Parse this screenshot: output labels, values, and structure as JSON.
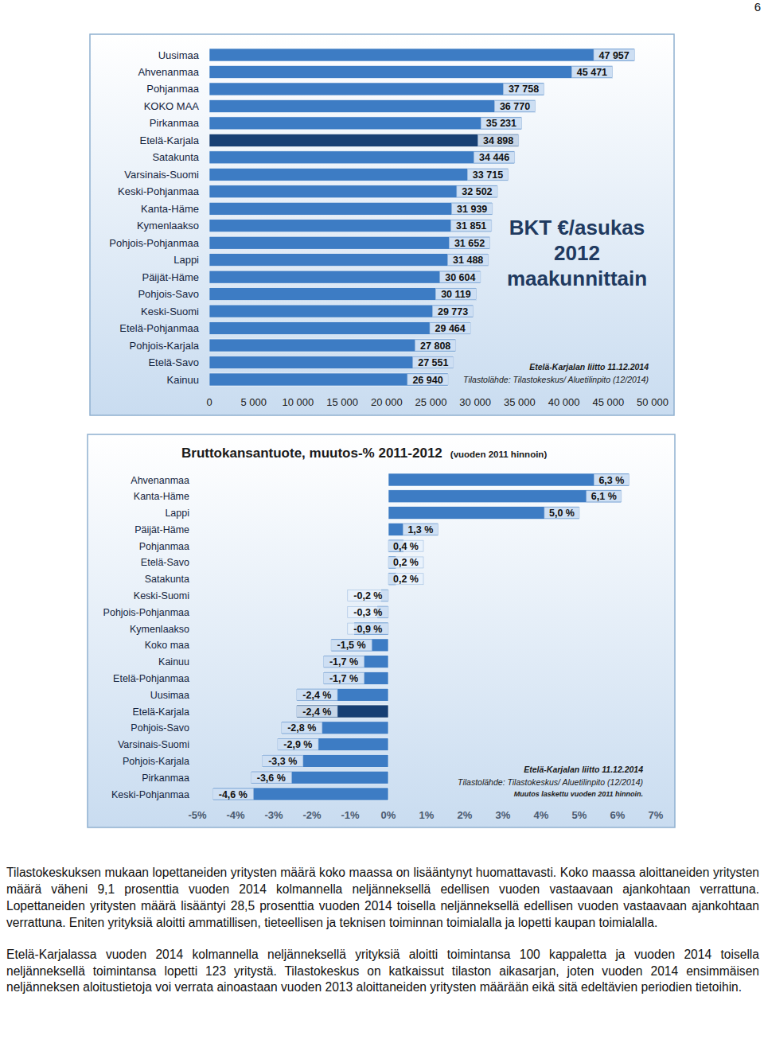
{
  "page_number": "6",
  "chart_data": [
    {
      "type": "bar",
      "orientation": "horizontal",
      "title": "BKT €/asukas 2012 maakunnittain",
      "annotations": [
        "Etelä-Karjalan liitto 11.12.2014",
        "Tilastolähde: Tilastokeskus/ Aluetilinpito (12/2014)"
      ],
      "categories": [
        "Uusimaa",
        "Ahvenanmaa",
        "Pohjanmaa",
        "KOKO MAA",
        "Pirkanmaa",
        "Etelä-Karjala",
        "Satakunta",
        "Varsinais-Suomi",
        "Keski-Pohjanmaa",
        "Kanta-Häme",
        "Kymenlaakso",
        "Pohjois-Pohjanmaa",
        "Lappi",
        "Päijät-Häme",
        "Pohjois-Savo",
        "Keski-Suomi",
        "Etelä-Pohjanmaa",
        "Pohjois-Karjala",
        "Etelä-Savo",
        "Kainuu"
      ],
      "values": [
        47957,
        45471,
        37758,
        36770,
        35231,
        34898,
        34446,
        33715,
        32502,
        31939,
        31851,
        31652,
        31488,
        30604,
        30119,
        29773,
        29464,
        27808,
        27551,
        26940
      ],
      "value_labels": [
        "47 957",
        "45 471",
        "37 758",
        "36 770",
        "35 231",
        "34 898",
        "34 446",
        "33 715",
        "32 502",
        "31 939",
        "31 851",
        "31 652",
        "31 488",
        "30 604",
        "30 119",
        "29 773",
        "29 464",
        "27 808",
        "27 551",
        "26 940"
      ],
      "colors": [
        "#3d7cc4",
        "#3d7cc4",
        "#3d7cc4",
        "#3d7cc4",
        "#3d7cc4",
        "#173f73",
        "#3d7cc4",
        "#3d7cc4",
        "#3d7cc4",
        "#3d7cc4",
        "#3d7cc4",
        "#3d7cc4",
        "#3d7cc4",
        "#3d7cc4",
        "#3d7cc4",
        "#3d7cc4",
        "#3d7cc4",
        "#3d7cc4",
        "#3d7cc4",
        "#3d7cc4"
      ],
      "data_labels": true,
      "grid": false,
      "xlim": [
        0,
        50000
      ],
      "xticks": [
        0,
        {
          "value": 5000,
          "label": "5 000"
        },
        {
          "value": 10000,
          "label": "10 000"
        },
        {
          "value": 15000,
          "label": "15 000"
        },
        {
          "value": 20000,
          "label": "20 000"
        },
        {
          "value": 25000,
          "label": "25 000"
        },
        {
          "value": 30000,
          "label": "30 000"
        },
        {
          "value": 35000,
          "label": "35 000"
        },
        {
          "value": 40000,
          "label": "40 000"
        },
        {
          "value": 45000,
          "label": "45 000"
        },
        {
          "value": 50000,
          "label": "50 000"
        }
      ]
    },
    {
      "type": "bar",
      "orientation": "horizontal",
      "title": "Bruttokansantuote, muutos-% 2011-2012",
      "subtitle": "(vuoden 2011 hinnoin)",
      "annotations": [
        "Etelä-Karjalan liitto 11.12.2014",
        "Tilastolähde: Tilastokeskus/ Aluetilinpito (12/2014)",
        "Muutos laskettu vuoden 2011 hinnoin."
      ],
      "categories": [
        "Ahvenanmaa",
        "Kanta-Häme",
        "Lappi",
        "Päijät-Häme",
        "Pohjanmaa",
        "Etelä-Savo",
        "Satakunta",
        "Keski-Suomi",
        "Pohjois-Pohjanmaa",
        "Kymenlaakso",
        "Koko maa",
        "Kainuu",
        "Etelä-Pohjanmaa",
        "Uusimaa",
        "Etelä-Karjala",
        "Pohjois-Savo",
        "Varsinais-Suomi",
        "Pohjois-Karjala",
        "Pirkanmaa",
        "Keski-Pohjanmaa"
      ],
      "values": [
        6.3,
        6.1,
        5.0,
        1.3,
        0.4,
        0.2,
        0.2,
        -0.2,
        -0.3,
        -0.9,
        -1.5,
        -1.7,
        -1.7,
        -2.4,
        -2.4,
        -2.8,
        -2.9,
        -3.3,
        -3.6,
        -4.6
      ],
      "value_labels": [
        "6,3 %",
        "6,1 %",
        "5,0 %",
        "1,3 %",
        "0,4 %",
        "0,2 %",
        "0,2 %",
        "-0,2 %",
        "-0,3 %",
        "-0,9 %",
        "-1,5 %",
        "-1,7 %",
        "-1,7 %",
        "-2,4 %",
        "-2,4 %",
        "-2,8 %",
        "-2,9 %",
        "-3,3 %",
        "-3,6 %",
        "-4,6 %"
      ],
      "colors": [
        "#3d7cc4",
        "#3d7cc4",
        "#3d7cc4",
        "#3d7cc4",
        "#3d7cc4",
        "#3d7cc4",
        "#3d7cc4",
        "#3d7cc4",
        "#3d7cc4",
        "#3d7cc4",
        "#3d7cc4",
        "#3d7cc4",
        "#3d7cc4",
        "#3d7cc4",
        "#173f73",
        "#3d7cc4",
        "#3d7cc4",
        "#3d7cc4",
        "#3d7cc4",
        "#3d7cc4"
      ],
      "data_labels": true,
      "grid": false,
      "xlim": [
        -5,
        7
      ],
      "xticks": [
        {
          "value": -5,
          "label": "-5%"
        },
        {
          "value": -4,
          "label": "-4%"
        },
        {
          "value": -3,
          "label": "-3%"
        },
        {
          "value": -2,
          "label": "-2%"
        },
        {
          "value": -1,
          "label": "-1%"
        },
        {
          "value": 0,
          "label": "0%"
        },
        {
          "value": 1,
          "label": "1%"
        },
        {
          "value": 2,
          "label": "2%"
        },
        {
          "value": 3,
          "label": "3%"
        },
        {
          "value": 4,
          "label": "4%"
        },
        {
          "value": 5,
          "label": "5%"
        },
        {
          "value": 6,
          "label": "6%"
        },
        {
          "value": 7,
          "label": "7%"
        }
      ]
    }
  ],
  "text": {
    "paragraphs": [
      "Tilastokeskuksen mukaan lopettaneiden yritysten määrä koko maassa on lisääntynyt huomattavasti. Koko maassa aloittaneiden yritysten määrä väheni 9,1 prosenttia vuoden 2014 kolmannella neljänneksellä edellisen vuoden vastaavaan ajankohtaan verrattuna. Lopettaneiden yritysten määrä lisääntyi 28,5 prosenttia vuoden 2014 toisella neljänneksellä edellisen vuoden vastaavaan ajankohtaan verrattuna. Eniten yrityksiä aloitti ammatillisen, tieteellisen ja teknisen toiminnan toimialalla ja lopetti kaupan toimialalla.",
      "Etelä-Karjalassa vuoden 2014 kolmannella neljänneksellä yrityksiä aloitti toimintansa 100 kappaletta ja vuoden 2014 toisella neljänneksellä toimintansa lopetti 123 yritystä. Tilastokeskus on katkaissut tilaston aikasarjan, joten vuoden 2014 ensimmäisen neljänneksen aloitustietoja voi verrata ainoastaan vuoden 2013 aloittaneiden yritysten määrään eikä sitä edeltävien periodien tietoihin."
    ]
  }
}
